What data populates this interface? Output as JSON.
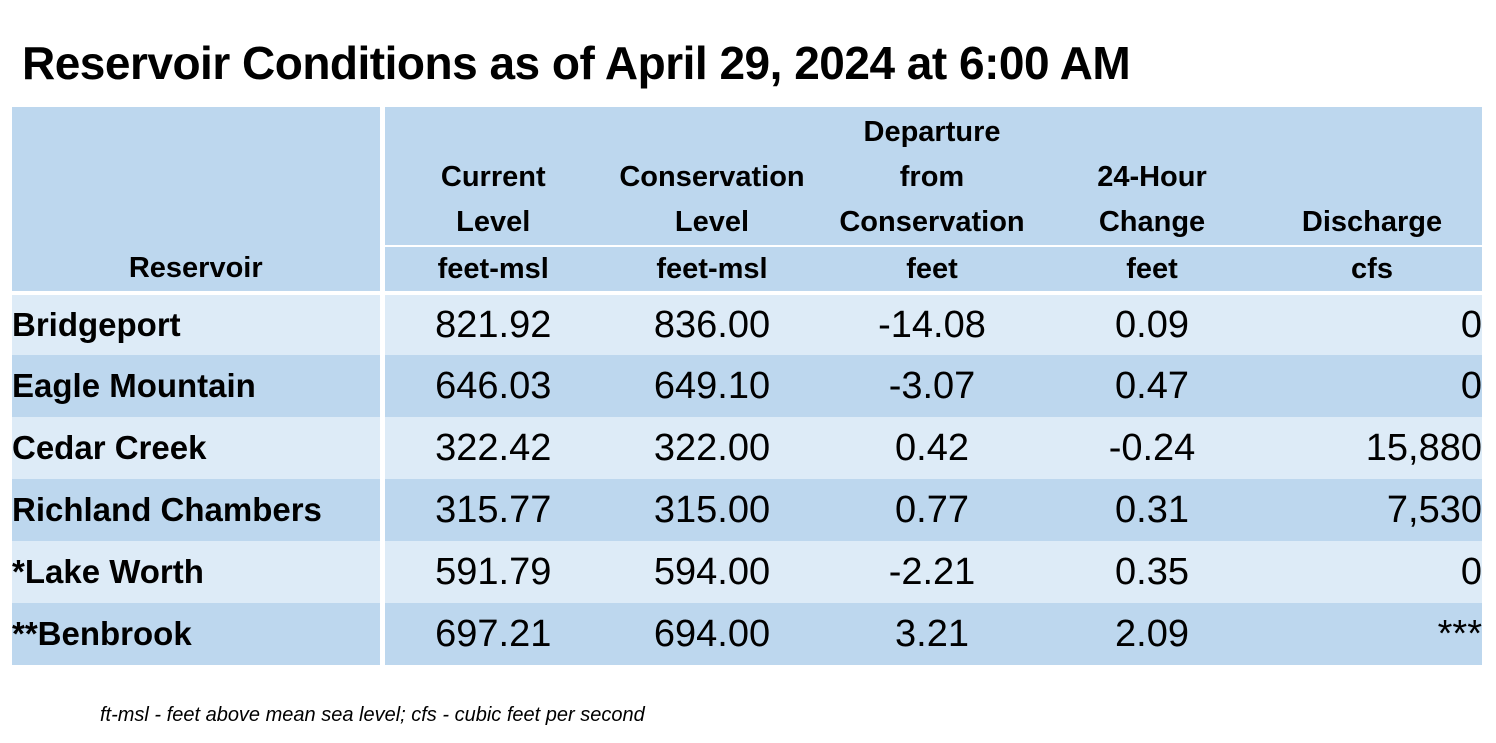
{
  "title": "Reservoir Conditions as of April 29, 2024 at 6:00 AM",
  "table": {
    "headers": [
      {
        "lines": [
          "Reservoir"
        ],
        "unit": ""
      },
      {
        "lines": [
          "Current",
          "Level"
        ],
        "unit": "feet-msl"
      },
      {
        "lines": [
          "Conservation",
          "Level"
        ],
        "unit": "feet-msl"
      },
      {
        "lines": [
          "Departure",
          "from",
          "Conservation"
        ],
        "unit": "feet"
      },
      {
        "lines": [
          "24-Hour",
          "Change"
        ],
        "unit": "feet"
      },
      {
        "lines": [
          "Discharge"
        ],
        "unit": "cfs"
      }
    ],
    "rows": [
      {
        "reservoir": "Bridgeport",
        "current": "821.92",
        "conservation": "836.00",
        "departure": "-14.08",
        "change": "0.09",
        "discharge": "0"
      },
      {
        "reservoir": "Eagle Mountain",
        "current": "646.03",
        "conservation": "649.10",
        "departure": "-3.07",
        "change": "0.47",
        "discharge": "0"
      },
      {
        "reservoir": "Cedar Creek",
        "current": "322.42",
        "conservation": "322.00",
        "departure": "0.42",
        "change": "-0.24",
        "discharge": "15,880"
      },
      {
        "reservoir": "Richland Chambers",
        "current": "315.77",
        "conservation": "315.00",
        "departure": "0.77",
        "change": "0.31",
        "discharge": "7,530"
      },
      {
        "reservoir": "*Lake Worth",
        "current": "591.79",
        "conservation": "594.00",
        "departure": "-2.21",
        "change": "0.35",
        "discharge": "0"
      },
      {
        "reservoir": "**Benbrook",
        "current": "697.21",
        "conservation": "694.00",
        "departure": "3.21",
        "change": "2.09",
        "discharge": "***"
      }
    ]
  },
  "footnote": "ft-msl - feet above mean sea level; cfs - cubic feet per second",
  "colors": {
    "header_bg": "#bdd7ee",
    "row_light": "#ddebf7",
    "row_dark": "#bdd7ee"
  }
}
